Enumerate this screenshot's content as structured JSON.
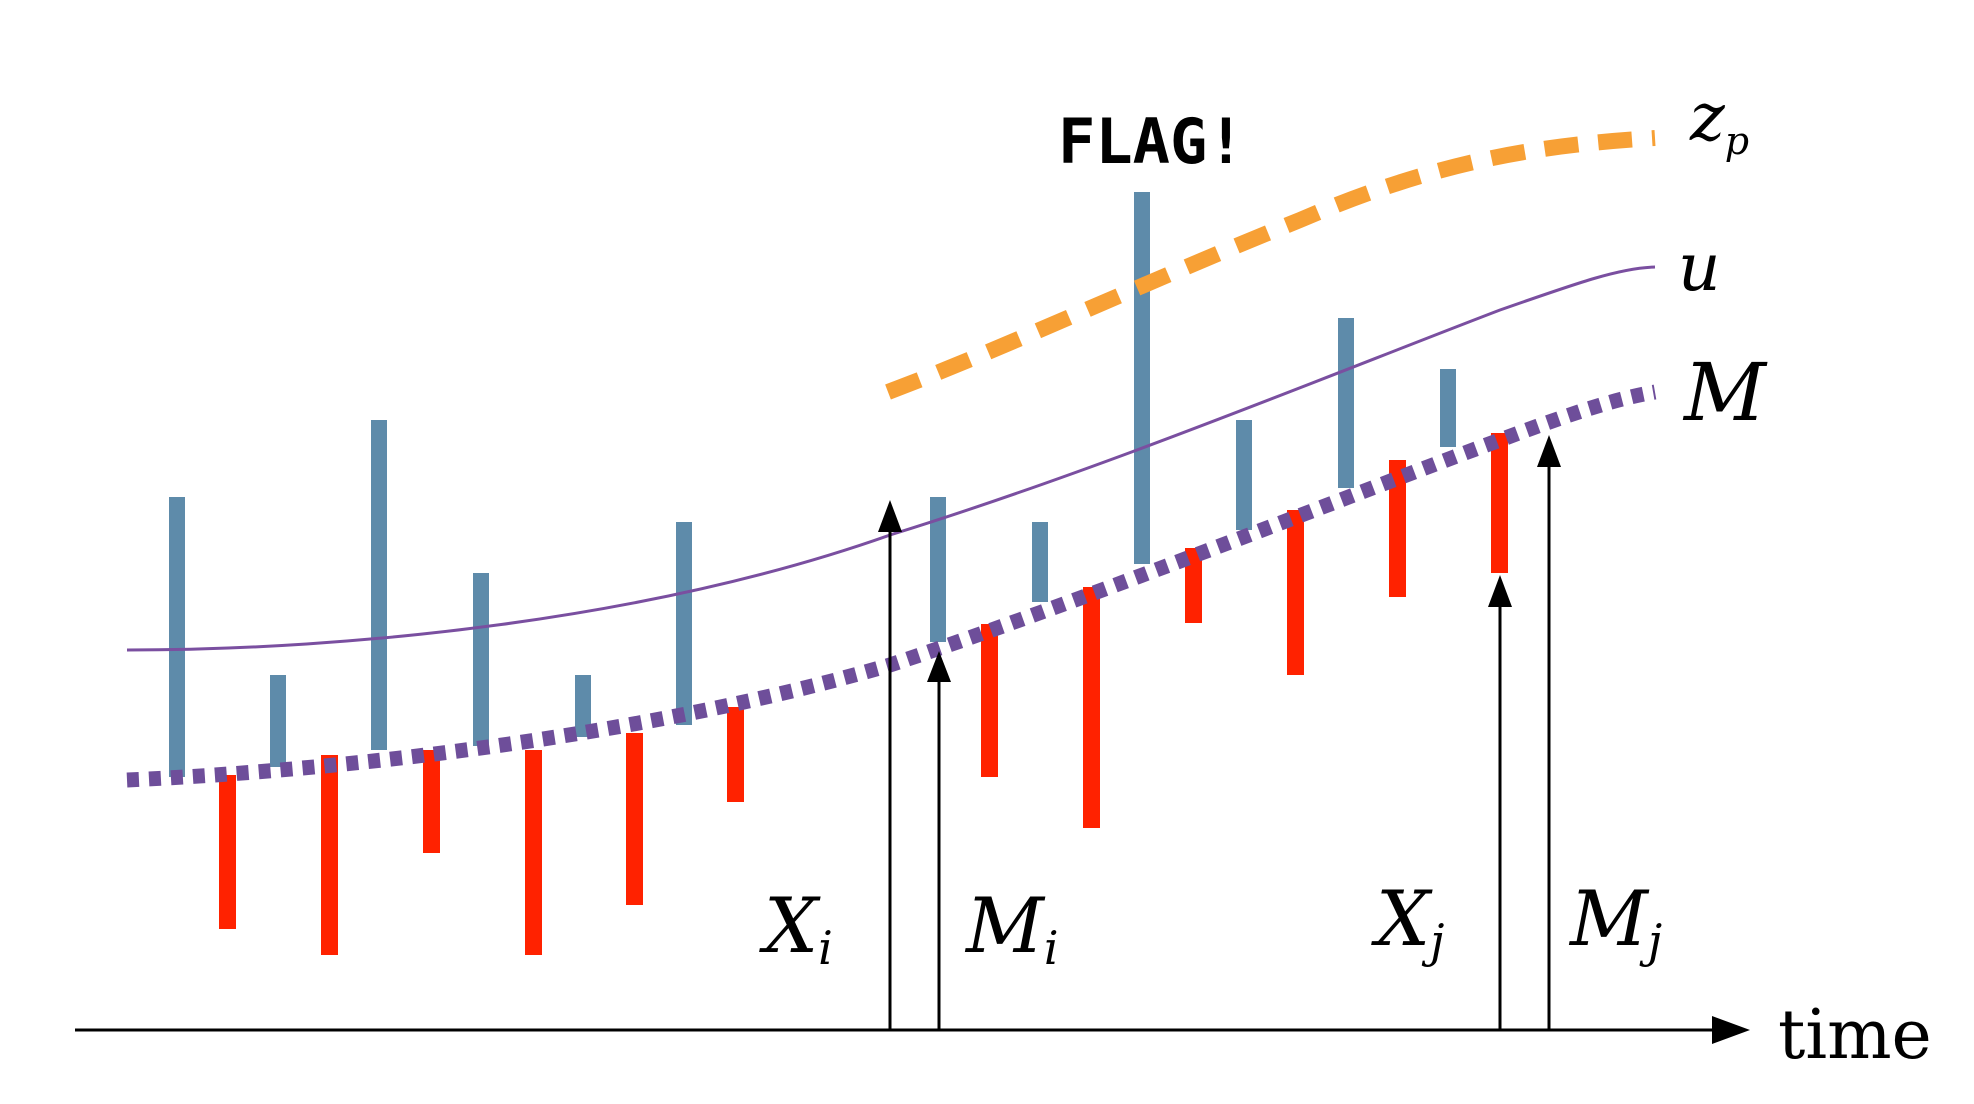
{
  "flag_text": "FLAG!",
  "axis": {
    "label": "time"
  },
  "curves": {
    "zp": {
      "symbol": "z",
      "subscript": "p",
      "color": "#F7A035"
    },
    "u": {
      "symbol": "u",
      "color": "#7A4FA0"
    },
    "M": {
      "symbol": "M",
      "color": "#6E4E9A"
    }
  },
  "markers": [
    {
      "symbol": "X",
      "subscript": "i"
    },
    {
      "symbol": "M",
      "subscript": "i"
    },
    {
      "symbol": "X",
      "subscript": "j"
    },
    {
      "symbol": "M",
      "subscript": "j"
    }
  ],
  "colors": {
    "above_bar": "#5E8BAA",
    "below_bar": "#FF2200",
    "axis": "#000000"
  }
}
